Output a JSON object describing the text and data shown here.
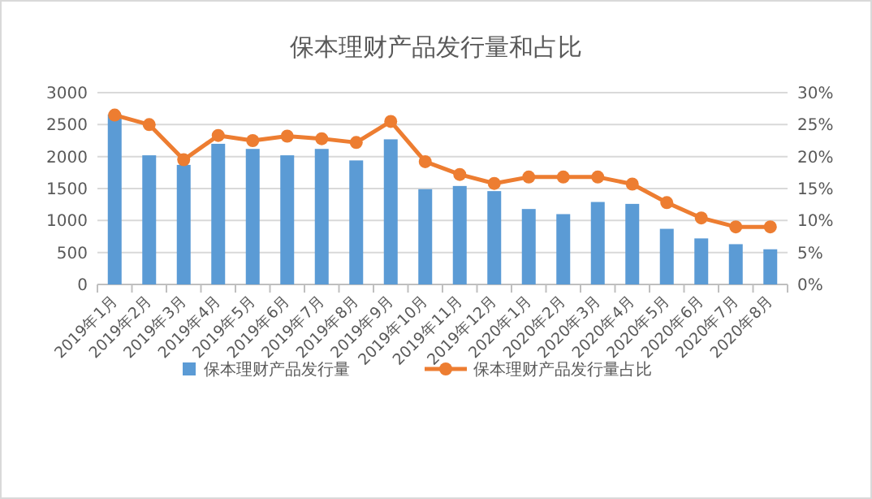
{
  "chart_data": {
    "type": "bar",
    "title": "保本理财产品发行量和占比",
    "categories": [
      "2019年1月",
      "2019年2月",
      "2019年3月",
      "2019年4月",
      "2019年5月",
      "2019年6月",
      "2019年7月",
      "2019年8月",
      "2019年9月",
      "2019年10月",
      "2019年11月",
      "2019年12月",
      "2020年1月",
      "2020年2月",
      "2020年3月",
      "2020年4月",
      "2020年5月",
      "2020年6月",
      "2020年7月",
      "2020年8月"
    ],
    "series": [
      {
        "name": "保本理财产品发行量",
        "color": "#5b9bd5",
        "values": [
          2660,
          2020,
          1870,
          2200,
          2120,
          2020,
          2120,
          1940,
          2270,
          1490,
          1540,
          1460,
          1180,
          1100,
          1290,
          1260,
          870,
          720,
          630,
          550
        ]
      },
      {
        "name": "保本理财产品发行量占比",
        "type": "line",
        "axis": "y2",
        "color": "#ed7d31",
        "marker": "circle",
        "values": [
          26.5,
          25,
          19.5,
          23.3,
          22.5,
          23.2,
          22.8,
          22.2,
          25.5,
          19.2,
          17.2,
          15.8,
          16.8,
          16.8,
          16.8,
          15.7,
          12.8,
          10.4,
          9.0,
          9.0
        ]
      }
    ],
    "ylim": [
      0,
      3000
    ],
    "yticks": [
      0,
      500,
      1000,
      1500,
      2000,
      2500,
      3000
    ],
    "y2lim": [
      0,
      30
    ],
    "y2ticks": [
      {
        "value": 0,
        "label": "0%"
      },
      {
        "value": 5,
        "label": "5%"
      },
      {
        "value": 10,
        "label": "10%"
      },
      {
        "value": 15,
        "label": "15%"
      },
      {
        "value": 20,
        "label": "20%"
      },
      {
        "value": 25,
        "label": "25%"
      },
      {
        "value": 30,
        "label": "30%"
      }
    ],
    "grid": "y",
    "legend": "bottom"
  }
}
